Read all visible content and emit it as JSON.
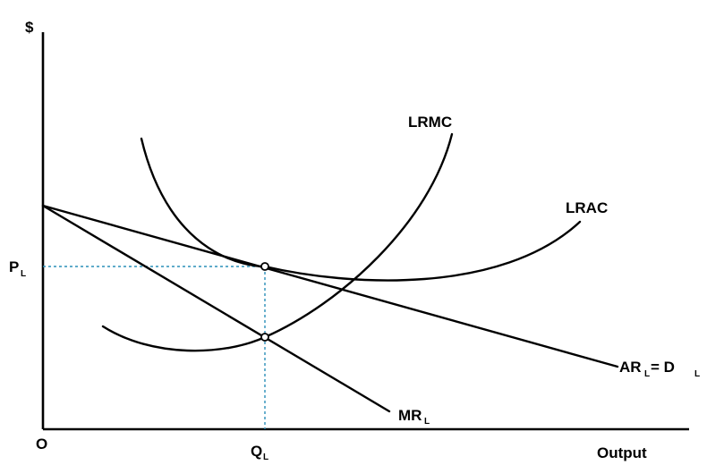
{
  "diagram": {
    "y_axis_label": "$",
    "x_axis_label": "Output",
    "origin_label": "O",
    "price_label": "P",
    "price_label_sub": "L",
    "quantity_label": "Q",
    "quantity_label_sub": "L",
    "curves": {
      "lrmc": "LRMC",
      "lrac": "LRAC",
      "mr_main": "MR",
      "mr_sub": "L",
      "ar_main": "AR",
      "ar_sub": "L",
      "ar_eq": "= D",
      "ar_eq_sub": "L"
    }
  }
}
